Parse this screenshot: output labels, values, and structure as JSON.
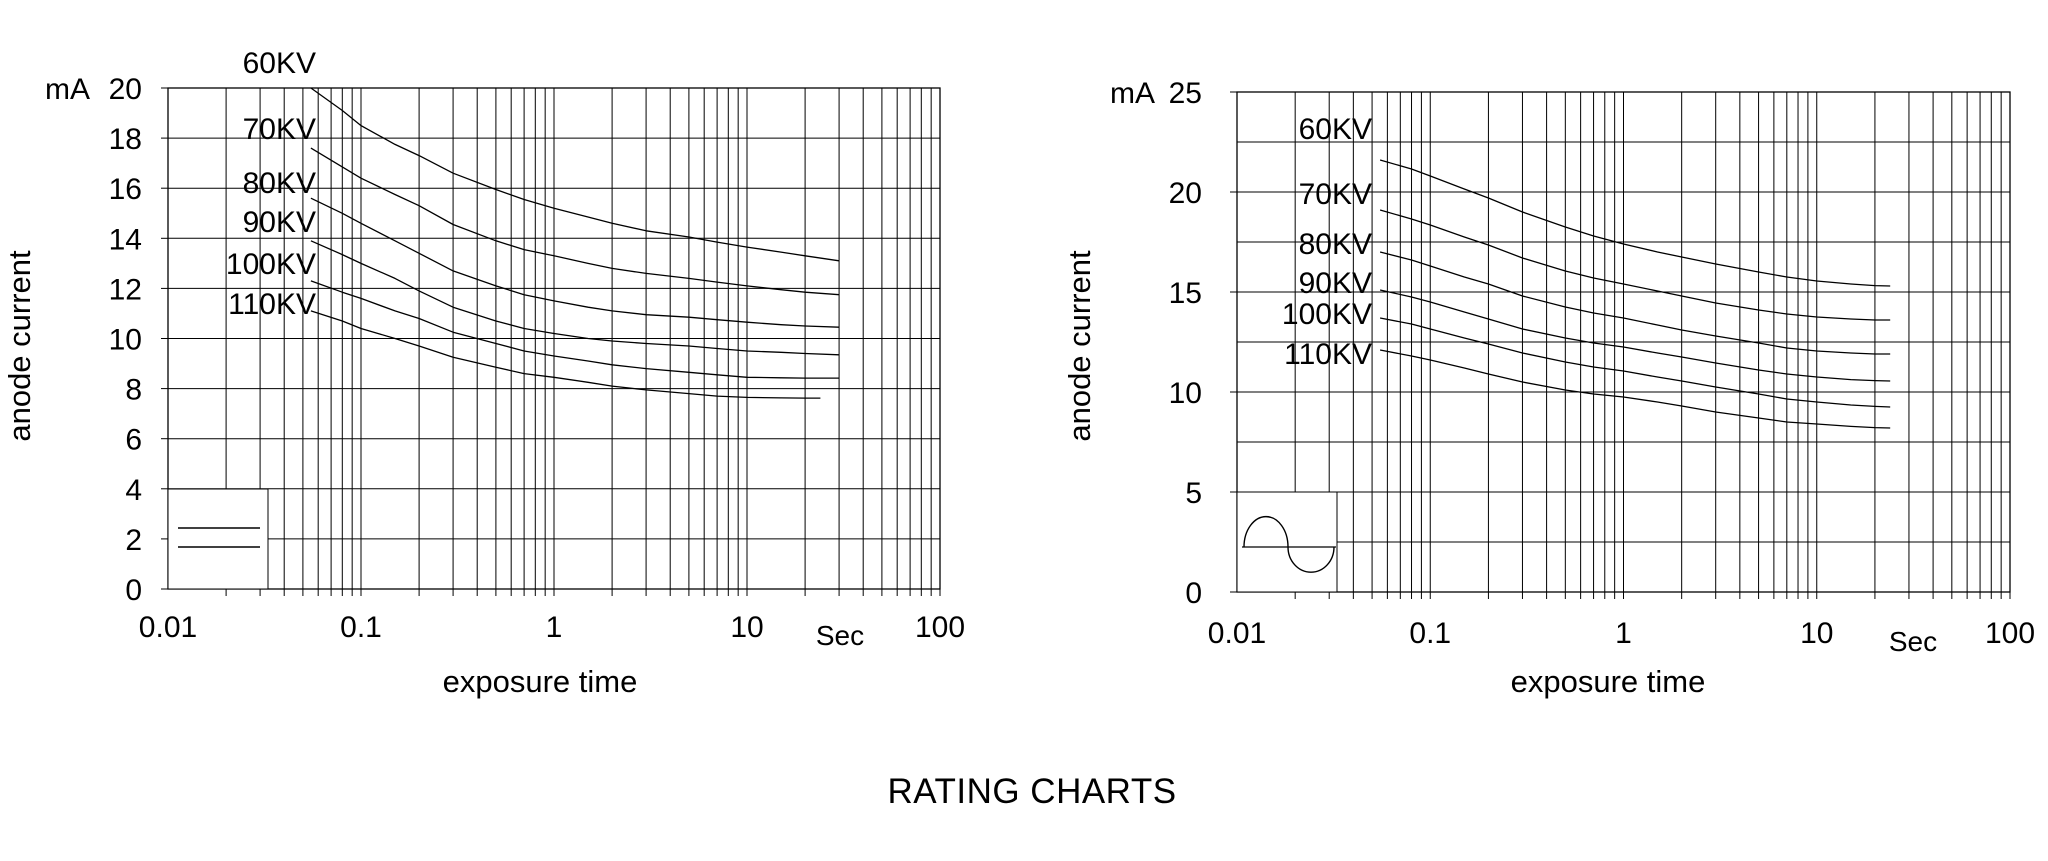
{
  "page_title": "RATING CHARTS",
  "colors": {
    "ink": "#000000",
    "paper": "#ffffff"
  },
  "chart_data": [
    {
      "type": "line",
      "name": "left-rating-chart",
      "waveform": "constant-potential",
      "legend_symbol": "dc-lines-icon",
      "x_scale": "log",
      "xlim": [
        0.01,
        100
      ],
      "x_tick_labels": [
        "0.01",
        "0.1",
        "1",
        "10",
        "100"
      ],
      "x_unit": "Sec",
      "xlabel": "exposure time",
      "ylim": [
        0,
        20
      ],
      "y_tick_values": [
        0,
        2,
        4,
        6,
        8,
        10,
        12,
        14,
        16,
        18,
        20
      ],
      "y_grid_step": 2,
      "y_unit": "mA",
      "ylabel": "anode current",
      "grid": true,
      "series": [
        {
          "name": "60KV",
          "points": [
            [
              0.055,
              20.0
            ],
            [
              0.08,
              19.1
            ],
            [
              0.1,
              18.5
            ],
            [
              0.15,
              17.75
            ],
            [
              0.2,
              17.3
            ],
            [
              0.3,
              16.6
            ],
            [
              0.5,
              15.95
            ],
            [
              0.7,
              15.55
            ],
            [
              1,
              15.2
            ],
            [
              1.5,
              14.85
            ],
            [
              2,
              14.6
            ],
            [
              3,
              14.3
            ],
            [
              5,
              14.05
            ],
            [
              7,
              13.85
            ],
            [
              10,
              13.65
            ],
            [
              15,
              13.45
            ],
            [
              20,
              13.3
            ],
            [
              30,
              13.1
            ]
          ]
        },
        {
          "name": "70KV",
          "points": [
            [
              0.055,
              17.6
            ],
            [
              0.08,
              16.85
            ],
            [
              0.1,
              16.4
            ],
            [
              0.15,
              15.75
            ],
            [
              0.2,
              15.3
            ],
            [
              0.3,
              14.55
            ],
            [
              0.5,
              13.9
            ],
            [
              0.7,
              13.55
            ],
            [
              1,
              13.3
            ],
            [
              1.5,
              13.0
            ],
            [
              2,
              12.8
            ],
            [
              3,
              12.6
            ],
            [
              5,
              12.4
            ],
            [
              7,
              12.25
            ],
            [
              10,
              12.1
            ],
            [
              15,
              11.95
            ],
            [
              20,
              11.85
            ],
            [
              30,
              11.75
            ]
          ]
        },
        {
          "name": "80KV",
          "points": [
            [
              0.055,
              15.6
            ],
            [
              0.08,
              15.0
            ],
            [
              0.1,
              14.6
            ],
            [
              0.15,
              13.9
            ],
            [
              0.2,
              13.4
            ],
            [
              0.3,
              12.7
            ],
            [
              0.5,
              12.1
            ],
            [
              0.7,
              11.75
            ],
            [
              1,
              11.5
            ],
            [
              1.5,
              11.25
            ],
            [
              2,
              11.1
            ],
            [
              3,
              10.95
            ],
            [
              5,
              10.85
            ],
            [
              7,
              10.75
            ],
            [
              10,
              10.65
            ],
            [
              15,
              10.55
            ],
            [
              20,
              10.5
            ],
            [
              30,
              10.45
            ]
          ]
        },
        {
          "name": "90KV",
          "points": [
            [
              0.055,
              13.9
            ],
            [
              0.08,
              13.35
            ],
            [
              0.1,
              13.0
            ],
            [
              0.15,
              12.4
            ],
            [
              0.2,
              11.9
            ],
            [
              0.3,
              11.25
            ],
            [
              0.5,
              10.7
            ],
            [
              0.7,
              10.4
            ],
            [
              1,
              10.2
            ],
            [
              1.5,
              10.0
            ],
            [
              2,
              9.9
            ],
            [
              3,
              9.8
            ],
            [
              5,
              9.7
            ],
            [
              7,
              9.6
            ],
            [
              10,
              9.5
            ],
            [
              15,
              9.45
            ],
            [
              20,
              9.4
            ],
            [
              30,
              9.35
            ]
          ]
        },
        {
          "name": "100KV",
          "points": [
            [
              0.055,
              12.3
            ],
            [
              0.08,
              11.85
            ],
            [
              0.1,
              11.6
            ],
            [
              0.15,
              11.1
            ],
            [
              0.2,
              10.8
            ],
            [
              0.3,
              10.25
            ],
            [
              0.5,
              9.8
            ],
            [
              0.7,
              9.5
            ],
            [
              1,
              9.3
            ],
            [
              1.5,
              9.1
            ],
            [
              2,
              8.95
            ],
            [
              3,
              8.8
            ],
            [
              5,
              8.65
            ],
            [
              7,
              8.55
            ],
            [
              10,
              8.45
            ],
            [
              15,
              8.43
            ],
            [
              20,
              8.42
            ],
            [
              30,
              8.42
            ]
          ]
        },
        {
          "name": "110KV",
          "points": [
            [
              0.055,
              11.1
            ],
            [
              0.08,
              10.7
            ],
            [
              0.1,
              10.4
            ],
            [
              0.15,
              10.0
            ],
            [
              0.2,
              9.7
            ],
            [
              0.3,
              9.25
            ],
            [
              0.5,
              8.85
            ],
            [
              0.7,
              8.6
            ],
            [
              1,
              8.45
            ],
            [
              1.5,
              8.25
            ],
            [
              2,
              8.1
            ],
            [
              3,
              7.95
            ],
            [
              5,
              7.8
            ],
            [
              7,
              7.7
            ],
            [
              10,
              7.65
            ],
            [
              15,
              7.63
            ],
            [
              20,
              7.62
            ],
            [
              24,
              7.62
            ]
          ]
        }
      ]
    },
    {
      "type": "line",
      "name": "right-rating-chart",
      "waveform": "single-phase",
      "legend_symbol": "ac-sine-icon",
      "x_scale": "log",
      "xlim": [
        0.01,
        100
      ],
      "x_tick_labels": [
        "0.01",
        "0.1",
        "1",
        "10",
        "100"
      ],
      "x_unit": "Sec",
      "xlabel": "exposure time",
      "ylim": [
        0,
        25
      ],
      "y_tick_values": [
        0,
        5,
        10,
        15,
        20,
        25
      ],
      "y_grid_step": 2.5,
      "y_unit": "mA",
      "ylabel": "anode current",
      "grid": true,
      "series": [
        {
          "name": "60KV",
          "points": [
            [
              0.055,
              21.6
            ],
            [
              0.08,
              21.15
            ],
            [
              0.1,
              20.8
            ],
            [
              0.15,
              20.15
            ],
            [
              0.2,
              19.7
            ],
            [
              0.3,
              19.0
            ],
            [
              0.5,
              18.25
            ],
            [
              0.7,
              17.8
            ],
            [
              1,
              17.4
            ],
            [
              1.5,
              17.0
            ],
            [
              2,
              16.75
            ],
            [
              3,
              16.4
            ],
            [
              5,
              16.0
            ],
            [
              7,
              15.75
            ],
            [
              10,
              15.55
            ],
            [
              15,
              15.4
            ],
            [
              20,
              15.32
            ],
            [
              24,
              15.3
            ]
          ]
        },
        {
          "name": "70KV",
          "points": [
            [
              0.055,
              19.1
            ],
            [
              0.08,
              18.65
            ],
            [
              0.1,
              18.35
            ],
            [
              0.15,
              17.75
            ],
            [
              0.2,
              17.35
            ],
            [
              0.3,
              16.7
            ],
            [
              0.5,
              16.05
            ],
            [
              0.7,
              15.7
            ],
            [
              1,
              15.4
            ],
            [
              1.5,
              15.05
            ],
            [
              2,
              14.8
            ],
            [
              3,
              14.45
            ],
            [
              5,
              14.1
            ],
            [
              7,
              13.9
            ],
            [
              10,
              13.75
            ],
            [
              15,
              13.65
            ],
            [
              20,
              13.6
            ],
            [
              24,
              13.6
            ]
          ]
        },
        {
          "name": "80KV",
          "points": [
            [
              0.055,
              17.0
            ],
            [
              0.08,
              16.6
            ],
            [
              0.1,
              16.3
            ],
            [
              0.15,
              15.75
            ],
            [
              0.2,
              15.4
            ],
            [
              0.3,
              14.8
            ],
            [
              0.5,
              14.25
            ],
            [
              0.7,
              13.95
            ],
            [
              1,
              13.7
            ],
            [
              1.5,
              13.35
            ],
            [
              2,
              13.1
            ],
            [
              3,
              12.8
            ],
            [
              5,
              12.45
            ],
            [
              7,
              12.2
            ],
            [
              10,
              12.05
            ],
            [
              15,
              11.95
            ],
            [
              20,
              11.9
            ],
            [
              24,
              11.9
            ]
          ]
        },
        {
          "name": "90KV",
          "points": [
            [
              0.055,
              15.1
            ],
            [
              0.08,
              14.75
            ],
            [
              0.1,
              14.5
            ],
            [
              0.15,
              14.0
            ],
            [
              0.2,
              13.65
            ],
            [
              0.3,
              13.15
            ],
            [
              0.5,
              12.7
            ],
            [
              0.7,
              12.45
            ],
            [
              1,
              12.25
            ],
            [
              1.5,
              11.95
            ],
            [
              2,
              11.75
            ],
            [
              3,
              11.45
            ],
            [
              5,
              11.1
            ],
            [
              7,
              10.9
            ],
            [
              10,
              10.75
            ],
            [
              15,
              10.62
            ],
            [
              20,
              10.57
            ],
            [
              24,
              10.55
            ]
          ]
        },
        {
          "name": "100KV",
          "points": [
            [
              0.055,
              13.7
            ],
            [
              0.08,
              13.4
            ],
            [
              0.1,
              13.15
            ],
            [
              0.15,
              12.7
            ],
            [
              0.2,
              12.4
            ],
            [
              0.3,
              11.95
            ],
            [
              0.5,
              11.5
            ],
            [
              0.7,
              11.25
            ],
            [
              1,
              11.05
            ],
            [
              1.5,
              10.75
            ],
            [
              2,
              10.55
            ],
            [
              3,
              10.25
            ],
            [
              5,
              9.9
            ],
            [
              7,
              9.65
            ],
            [
              10,
              9.5
            ],
            [
              15,
              9.35
            ],
            [
              20,
              9.28
            ],
            [
              24,
              9.25
            ]
          ]
        },
        {
          "name": "110KV",
          "points": [
            [
              0.055,
              12.1
            ],
            [
              0.08,
              11.8
            ],
            [
              0.1,
              11.6
            ],
            [
              0.15,
              11.2
            ],
            [
              0.2,
              10.9
            ],
            [
              0.3,
              10.5
            ],
            [
              0.5,
              10.1
            ],
            [
              0.7,
              9.9
            ],
            [
              1,
              9.75
            ],
            [
              1.5,
              9.5
            ],
            [
              2,
              9.3
            ],
            [
              3,
              9.0
            ],
            [
              5,
              8.7
            ],
            [
              7,
              8.5
            ],
            [
              10,
              8.4
            ],
            [
              15,
              8.28
            ],
            [
              20,
              8.22
            ],
            [
              24,
              8.2
            ]
          ]
        }
      ]
    }
  ]
}
